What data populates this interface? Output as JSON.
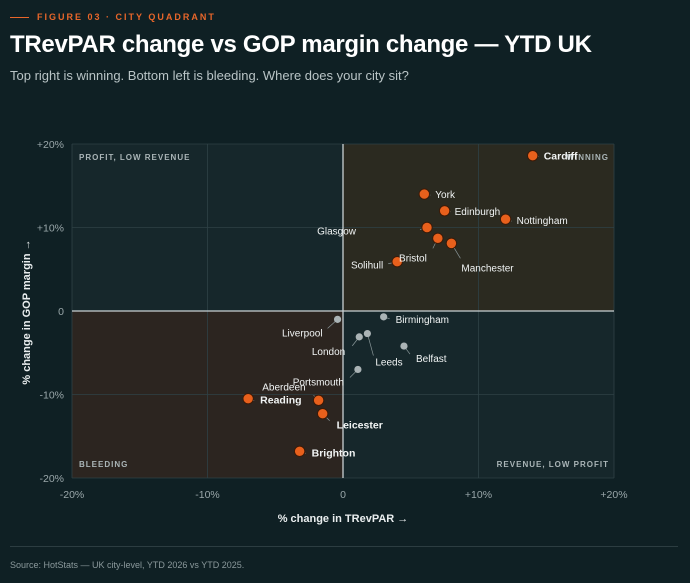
{
  "header": {
    "kicker": "FIGURE 03 · CITY QUADRANT",
    "title": "TRevPAR change vs GOP margin change — YTD UK",
    "subtitle": "Top right is winning. Bottom left is bleeding. Where does your city sit?"
  },
  "footer": {
    "source": "Source: HotStats — UK city-level, YTD 2026 vs YTD 2025."
  },
  "colors": {
    "background": "#0f2024",
    "winning_quadrant": "#2b2a20",
    "bleeding_quadrant": "#2c2520",
    "neutral_quadrant": "#16272b",
    "highlight_point": "#e8601c",
    "neutral_point": "#aab3b5"
  },
  "chart_data": {
    "type": "scatter",
    "xlabel": "% change in TRevPAR →",
    "ylabel": "% change in GOP margin →",
    "xlim": [
      -20,
      20
    ],
    "ylim": [
      -20,
      20
    ],
    "x_ticks": [
      {
        "value": -20,
        "label": "-20%"
      },
      {
        "value": -10,
        "label": "-10%"
      },
      {
        "value": 0,
        "label": "0"
      },
      {
        "value": 10,
        "label": "+10%"
      },
      {
        "value": 20,
        "label": "+20%"
      }
    ],
    "y_ticks": [
      {
        "value": 20,
        "label": "+20%"
      },
      {
        "value": 10,
        "label": "+10%"
      },
      {
        "value": 0,
        "label": "0"
      },
      {
        "value": -10,
        "label": "-10%"
      },
      {
        "value": -20,
        "label": "-20%"
      }
    ],
    "grid": true,
    "quadrant_labels": {
      "top_left": "PROFIT, LOW REVENUE",
      "top_right": "WINNING",
      "bottom_left": "BLEEDING",
      "bottom_right": "REVENUE, LOW PROFIT"
    },
    "points": [
      {
        "city": "Cardiff",
        "x": 14,
        "y": 18.6,
        "highlight": true,
        "bold": true
      },
      {
        "city": "York",
        "x": 6,
        "y": 14,
        "highlight": true,
        "bold": false
      },
      {
        "city": "Edinburgh",
        "x": 7.5,
        "y": 12,
        "highlight": true,
        "bold": false
      },
      {
        "city": "Nottingham",
        "x": 12,
        "y": 11,
        "highlight": true,
        "bold": false
      },
      {
        "city": "Glasgow",
        "x": 6.2,
        "y": 10,
        "highlight": true,
        "bold": false
      },
      {
        "city": "Bristol",
        "x": 7,
        "y": 8.7,
        "highlight": true,
        "bold": false
      },
      {
        "city": "Manchester",
        "x": 8,
        "y": 8.1,
        "highlight": true,
        "bold": false
      },
      {
        "city": "Solihull",
        "x": 4,
        "y": 5.9,
        "highlight": true,
        "bold": false
      },
      {
        "city": "Birmingham",
        "x": 3,
        "y": -0.7,
        "highlight": false,
        "bold": false
      },
      {
        "city": "Liverpool",
        "x": -0.4,
        "y": -1,
        "highlight": false,
        "bold": false
      },
      {
        "city": "London",
        "x": 1.2,
        "y": -3.1,
        "highlight": false,
        "bold": false
      },
      {
        "city": "Leeds",
        "x": 1.8,
        "y": -2.7,
        "highlight": false,
        "bold": false
      },
      {
        "city": "Belfast",
        "x": 4.5,
        "y": -4.2,
        "highlight": false,
        "bold": false
      },
      {
        "city": "Portsmouth",
        "x": 1.1,
        "y": -7,
        "highlight": false,
        "bold": false
      },
      {
        "city": "Aberdeen",
        "x": -1.8,
        "y": -10.7,
        "highlight": true,
        "bold": false
      },
      {
        "city": "Reading",
        "x": -7,
        "y": -10.5,
        "highlight": true,
        "bold": true
      },
      {
        "city": "Leicester",
        "x": -1.5,
        "y": -12.3,
        "highlight": true,
        "bold": true
      },
      {
        "city": "Brighton",
        "x": -3.2,
        "y": -16.8,
        "highlight": true,
        "bold": true
      }
    ]
  }
}
